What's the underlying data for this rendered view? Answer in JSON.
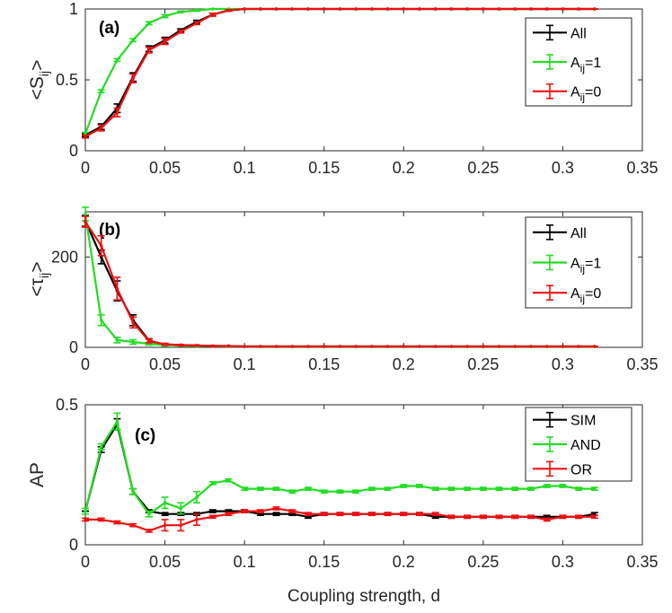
{
  "colors": {
    "all": "#000000",
    "aij1": "#22dd22",
    "aij0": "#ee1111"
  },
  "figure": {
    "xlabel": "Coupling strength, d"
  },
  "chart_data": [
    {
      "type": "line",
      "panel_label": "(a)",
      "ylabel": {
        "main": "<S",
        "sub": "ij",
        "close": ">"
      },
      "xlim": [
        0,
        0.35
      ],
      "ylim": [
        0,
        1
      ],
      "xticks": [
        0,
        0.05,
        0.1,
        0.15,
        0.2,
        0.25,
        0.3,
        0.35
      ],
      "xtick_labels": [
        "0",
        "0.05",
        "0.1",
        "0.15",
        "0.2",
        "0.25",
        "0.3",
        "0.35"
      ],
      "yticks": [
        0,
        0.5,
        1
      ],
      "ytick_labels": [
        "0",
        "0.5",
        "1"
      ],
      "legend_position": "top-right",
      "x": [
        0,
        0.01,
        0.02,
        0.03,
        0.04,
        0.05,
        0.06,
        0.07,
        0.08,
        0.09,
        0.1,
        0.11,
        0.12,
        0.13,
        0.14,
        0.15,
        0.16,
        0.17,
        0.18,
        0.19,
        0.2,
        0.21,
        0.22,
        0.23,
        0.24,
        0.25,
        0.26,
        0.27,
        0.28,
        0.29,
        0.3,
        0.31,
        0.32
      ],
      "series": [
        {
          "name": "All",
          "legend": {
            "main": "All",
            "sub": "",
            "tail": ""
          },
          "color_key": "all",
          "values": [
            0.11,
            0.17,
            0.3,
            0.52,
            0.72,
            0.78,
            0.85,
            0.91,
            0.96,
            0.99,
            1,
            1,
            1,
            1,
            1,
            1,
            1,
            1,
            1,
            1,
            1,
            1,
            1,
            1,
            1,
            1,
            1,
            1,
            1,
            1,
            1,
            1,
            1
          ],
          "errors": [
            0.01,
            0.02,
            0.03,
            0.03,
            0.02,
            0.02,
            0.01,
            0.01,
            0.01,
            0.005,
            0,
            0,
            0,
            0,
            0,
            0,
            0,
            0,
            0,
            0,
            0,
            0,
            0,
            0,
            0,
            0,
            0,
            0,
            0,
            0,
            0,
            0,
            0
          ]
        },
        {
          "name": "Aij=1",
          "legend": {
            "main": "A",
            "sub": "ij",
            "tail": "=1"
          },
          "color_key": "aij1",
          "values": [
            0.12,
            0.42,
            0.64,
            0.78,
            0.9,
            0.95,
            0.98,
            0.99,
            1,
            1,
            1,
            1,
            1,
            1,
            1,
            1,
            1,
            1,
            1,
            1,
            1,
            1,
            1,
            1,
            1,
            1,
            1,
            1,
            1,
            1,
            1,
            1,
            1
          ],
          "errors": [
            0.01,
            0.01,
            0.01,
            0.01,
            0.01,
            0.01,
            0.005,
            0.005,
            0,
            0,
            0,
            0,
            0,
            0,
            0,
            0,
            0,
            0,
            0,
            0,
            0,
            0,
            0,
            0,
            0,
            0,
            0,
            0,
            0,
            0,
            0,
            0,
            0
          ]
        },
        {
          "name": "Aij=0",
          "legend": {
            "main": "A",
            "sub": "ij",
            "tail": "=0"
          },
          "color_key": "aij0",
          "values": [
            0.1,
            0.16,
            0.27,
            0.51,
            0.71,
            0.77,
            0.84,
            0.9,
            0.96,
            0.99,
            1,
            1,
            1,
            1,
            1,
            1,
            1,
            1,
            1,
            1,
            1,
            1,
            1,
            1,
            1,
            1,
            1,
            1,
            1,
            1,
            1,
            1,
            1
          ],
          "errors": [
            0.01,
            0.02,
            0.03,
            0.03,
            0.02,
            0.02,
            0.01,
            0.01,
            0.01,
            0.005,
            0,
            0,
            0,
            0,
            0,
            0,
            0,
            0,
            0,
            0,
            0,
            0,
            0,
            0,
            0,
            0,
            0,
            0,
            0,
            0,
            0,
            0,
            0
          ]
        }
      ]
    },
    {
      "type": "line",
      "panel_label": "(b)",
      "ylabel": {
        "main": "<τ",
        "sub": "ij",
        "close": ">"
      },
      "xlim": [
        0,
        0.35
      ],
      "ylim": [
        0,
        300
      ],
      "xticks": [
        0,
        0.05,
        0.1,
        0.15,
        0.2,
        0.25,
        0.3,
        0.35
      ],
      "xtick_labels": [
        "0",
        "0.05",
        "0.1",
        "0.15",
        "0.2",
        "0.25",
        "0.3",
        "0.35"
      ],
      "yticks": [
        0,
        200
      ],
      "ytick_labels": [
        "0",
        "200"
      ],
      "legend_position": "top-right",
      "x": [
        0,
        0.01,
        0.02,
        0.03,
        0.04,
        0.05,
        0.06,
        0.07,
        0.08,
        0.09,
        0.1,
        0.11,
        0.12,
        0.13,
        0.14,
        0.15,
        0.16,
        0.17,
        0.18,
        0.19,
        0.2,
        0.21,
        0.22,
        0.23,
        0.24,
        0.25,
        0.26,
        0.27,
        0.28,
        0.29,
        0.3,
        0.31,
        0.32
      ],
      "series": [
        {
          "name": "All",
          "legend": {
            "main": "All",
            "sub": "",
            "tail": ""
          },
          "color_key": "all",
          "values": [
            280,
            200,
            125,
            60,
            15,
            6,
            5,
            4,
            3,
            3,
            2,
            2,
            2,
            2,
            2,
            2,
            2,
            2,
            2,
            2,
            2,
            2,
            2,
            2,
            2,
            2,
            2,
            2,
            2,
            2,
            2,
            2,
            2
          ],
          "errors": [
            12,
            15,
            22,
            12,
            4,
            2,
            1,
            1,
            1,
            0,
            0,
            0,
            0,
            0,
            0,
            0,
            0,
            0,
            0,
            0,
            0,
            0,
            0,
            0,
            0,
            0,
            0,
            0,
            0,
            0,
            0,
            0,
            0
          ]
        },
        {
          "name": "Aij=1",
          "legend": {
            "main": "A",
            "sub": "ij",
            "tail": "=1"
          },
          "color_key": "aij1",
          "values": [
            295,
            60,
            16,
            12,
            8,
            5,
            4,
            3,
            3,
            2,
            2,
            2,
            2,
            2,
            2,
            2,
            2,
            2,
            2,
            2,
            2,
            2,
            2,
            2,
            2,
            2,
            2,
            2,
            2,
            2,
            2,
            2,
            2
          ],
          "errors": [
            15,
            12,
            6,
            5,
            3,
            2,
            1,
            1,
            1,
            0,
            0,
            0,
            0,
            0,
            0,
            0,
            0,
            0,
            0,
            0,
            0,
            0,
            0,
            0,
            0,
            0,
            0,
            0,
            0,
            0,
            0,
            0,
            0
          ]
        },
        {
          "name": "Aij=0",
          "legend": {
            "main": "A",
            "sub": "ij",
            "tail": "=0"
          },
          "color_key": "aij0",
          "values": [
            278,
            225,
            130,
            55,
            14,
            7,
            5,
            4,
            3,
            3,
            2,
            2,
            2,
            2,
            2,
            2,
            2,
            2,
            2,
            2,
            2,
            2,
            2,
            2,
            2,
            2,
            2,
            2,
            2,
            2,
            2,
            2,
            2
          ],
          "errors": [
            12,
            22,
            25,
            12,
            4,
            2,
            1,
            1,
            1,
            0,
            0,
            0,
            0,
            0,
            0,
            0,
            0,
            0,
            0,
            0,
            0,
            0,
            0,
            0,
            0,
            0,
            0,
            0,
            0,
            0,
            0,
            0,
            0
          ]
        }
      ]
    },
    {
      "type": "line",
      "panel_label": "(c)",
      "ylabel": {
        "main": "AP",
        "sub": "",
        "close": ""
      },
      "xlim": [
        0,
        0.35
      ],
      "ylim": [
        0,
        0.5
      ],
      "xticks": [
        0,
        0.05,
        0.1,
        0.15,
        0.2,
        0.25,
        0.3,
        0.35
      ],
      "xtick_labels": [
        "0",
        "0.05",
        "0.1",
        "0.15",
        "0.2",
        "0.25",
        "0.3",
        "0.35"
      ],
      "yticks": [
        0,
        0.5
      ],
      "ytick_labels": [
        "0",
        "0.5"
      ],
      "legend_position": "top-right",
      "x": [
        0,
        0.01,
        0.02,
        0.03,
        0.04,
        0.05,
        0.06,
        0.07,
        0.08,
        0.09,
        0.1,
        0.11,
        0.12,
        0.13,
        0.14,
        0.15,
        0.16,
        0.17,
        0.18,
        0.19,
        0.2,
        0.21,
        0.22,
        0.23,
        0.24,
        0.25,
        0.26,
        0.27,
        0.28,
        0.29,
        0.3,
        0.31,
        0.32
      ],
      "series": [
        {
          "name": "SIM",
          "legend": {
            "main": "SIM",
            "sub": "",
            "tail": ""
          },
          "color_key": "all",
          "values": [
            0.12,
            0.34,
            0.43,
            0.19,
            0.12,
            0.11,
            0.11,
            0.11,
            0.12,
            0.12,
            0.12,
            0.11,
            0.11,
            0.11,
            0.1,
            0.11,
            0.11,
            0.11,
            0.11,
            0.11,
            0.11,
            0.11,
            0.1,
            0.1,
            0.1,
            0.1,
            0.1,
            0.1,
            0.1,
            0.1,
            0.1,
            0.1,
            0.11
          ],
          "errors": [
            0,
            0.01,
            0.02,
            0.01,
            0.005,
            0.005,
            0.005,
            0.005,
            0.005,
            0.005,
            0.005,
            0.005,
            0.005,
            0.005,
            0.005,
            0.005,
            0.005,
            0.005,
            0.005,
            0.005,
            0.005,
            0.005,
            0.005,
            0.005,
            0.005,
            0.005,
            0.005,
            0.005,
            0.005,
            0.005,
            0.005,
            0.005,
            0.005
          ]
        },
        {
          "name": "AND",
          "legend": {
            "main": "AND",
            "sub": "",
            "tail": ""
          },
          "color_key": "aij1",
          "values": [
            0.12,
            0.35,
            0.44,
            0.19,
            0.11,
            0.15,
            0.13,
            0.17,
            0.22,
            0.23,
            0.2,
            0.2,
            0.2,
            0.19,
            0.2,
            0.19,
            0.19,
            0.19,
            0.2,
            0.2,
            0.21,
            0.21,
            0.2,
            0.2,
            0.2,
            0.2,
            0.2,
            0.2,
            0.2,
            0.21,
            0.21,
            0.2,
            0.2
          ],
          "errors": [
            0.01,
            0.01,
            0.03,
            0.01,
            0.01,
            0.02,
            0.02,
            0.02,
            0.005,
            0.005,
            0.005,
            0.005,
            0.005,
            0.005,
            0.005,
            0.005,
            0.005,
            0.005,
            0.005,
            0.005,
            0.005,
            0.005,
            0.005,
            0.005,
            0.005,
            0.005,
            0.005,
            0.005,
            0.005,
            0.005,
            0.005,
            0.005,
            0.005
          ]
        },
        {
          "name": "OR",
          "legend": {
            "main": "OR",
            "sub": "",
            "tail": ""
          },
          "color_key": "aij0",
          "values": [
            0.09,
            0.09,
            0.08,
            0.07,
            0.05,
            0.07,
            0.07,
            0.09,
            0.1,
            0.11,
            0.12,
            0.12,
            0.13,
            0.12,
            0.11,
            0.11,
            0.11,
            0.11,
            0.11,
            0.11,
            0.11,
            0.11,
            0.11,
            0.1,
            0.1,
            0.1,
            0.1,
            0.1,
            0.1,
            0.09,
            0.1,
            0.1,
            0.1
          ],
          "errors": [
            0.005,
            0.005,
            0.005,
            0.005,
            0.005,
            0.02,
            0.02,
            0.02,
            0.005,
            0.005,
            0.005,
            0.005,
            0.005,
            0.005,
            0.005,
            0.005,
            0.005,
            0.005,
            0.005,
            0.005,
            0.005,
            0.005,
            0.005,
            0.005,
            0.005,
            0.005,
            0.005,
            0.005,
            0.005,
            0.005,
            0.005,
            0.005,
            0.005
          ]
        }
      ]
    }
  ]
}
